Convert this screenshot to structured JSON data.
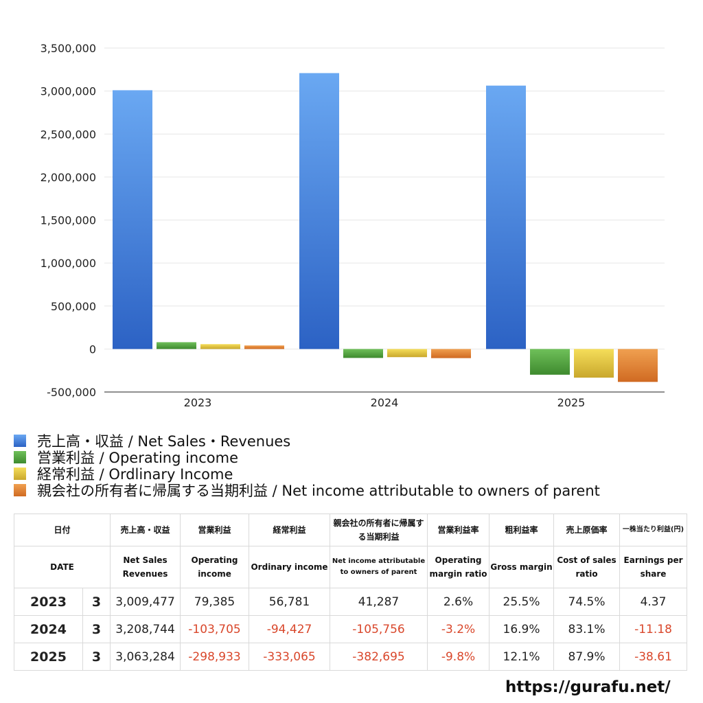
{
  "chart_data": {
    "type": "bar",
    "categories": [
      "2023",
      "2024",
      "2025"
    ],
    "ylim": [
      -500000,
      3500000
    ],
    "yticks": [
      -500000,
      0,
      500000,
      1000000,
      1500000,
      2000000,
      2500000,
      3000000,
      3500000
    ],
    "grid": true,
    "legend_placement": "bottom",
    "series": [
      {
        "name": "売上高・収益 / Net Sales・Revenues",
        "values": [
          3009477,
          3208744,
          3063284
        ],
        "color": "#3a7de0",
        "color_light": "#6aa8f2",
        "color_dark": "#2c62c4"
      },
      {
        "name": "営業利益 / Operating income",
        "values": [
          79385,
          -103705,
          -298933
        ],
        "color": "#4f9a3a",
        "color_light": "#6fc05a",
        "color_dark": "#3e8a2e"
      },
      {
        "name": "経常利益 / Ordlinary Income",
        "values": [
          56781,
          -94427,
          -333065
        ],
        "color": "#e0c23a",
        "color_light": "#f5de5a",
        "color_dark": "#c9a72c"
      },
      {
        "name": "親会社の所有者に帰属する当期利益 / Net income attributable to owners of parent",
        "values": [
          41287,
          -105756,
          -382695
        ],
        "color": "#e07f30",
        "color_light": "#f0a050",
        "color_dark": "#d06a22"
      }
    ]
  },
  "table": {
    "headers_jp": [
      "日付",
      "売上高・収益",
      "営業利益",
      "経常利益",
      "親会社の所有者に帰属する当期利益",
      "営業利益率",
      "粗利益率",
      "売上原価率",
      "一株当たり利益(円)"
    ],
    "headers_en": [
      "DATE",
      "Net Sales Revenues",
      "Operating income",
      "Ordinary income",
      "Net income attributable to owners of parent",
      "Operating margin ratio",
      "Gross margin",
      "Cost of sales ratio",
      "Earnings per share"
    ],
    "rows": [
      {
        "year": "2023",
        "month": "3",
        "sales": "3,009,477",
        "op": "79,385",
        "ord": "56,781",
        "net": "41,287",
        "opm": "2.6%",
        "gm": "25.5%",
        "cos": "74.5%",
        "eps": "4.37"
      },
      {
        "year": "2024",
        "month": "3",
        "sales": "3,208,744",
        "op": "-103,705",
        "ord": "-94,427",
        "net": "-105,756",
        "opm": "-3.2%",
        "gm": "16.9%",
        "cos": "83.1%",
        "eps": "-11.18"
      },
      {
        "year": "2025",
        "month": "3",
        "sales": "3,063,284",
        "op": "-298,933",
        "ord": "-333,065",
        "net": "-382,695",
        "opm": "-9.8%",
        "gm": "12.1%",
        "cos": "87.9%",
        "eps": "-38.61"
      }
    ]
  },
  "footer": {
    "url": "https://gurafu.net/"
  }
}
